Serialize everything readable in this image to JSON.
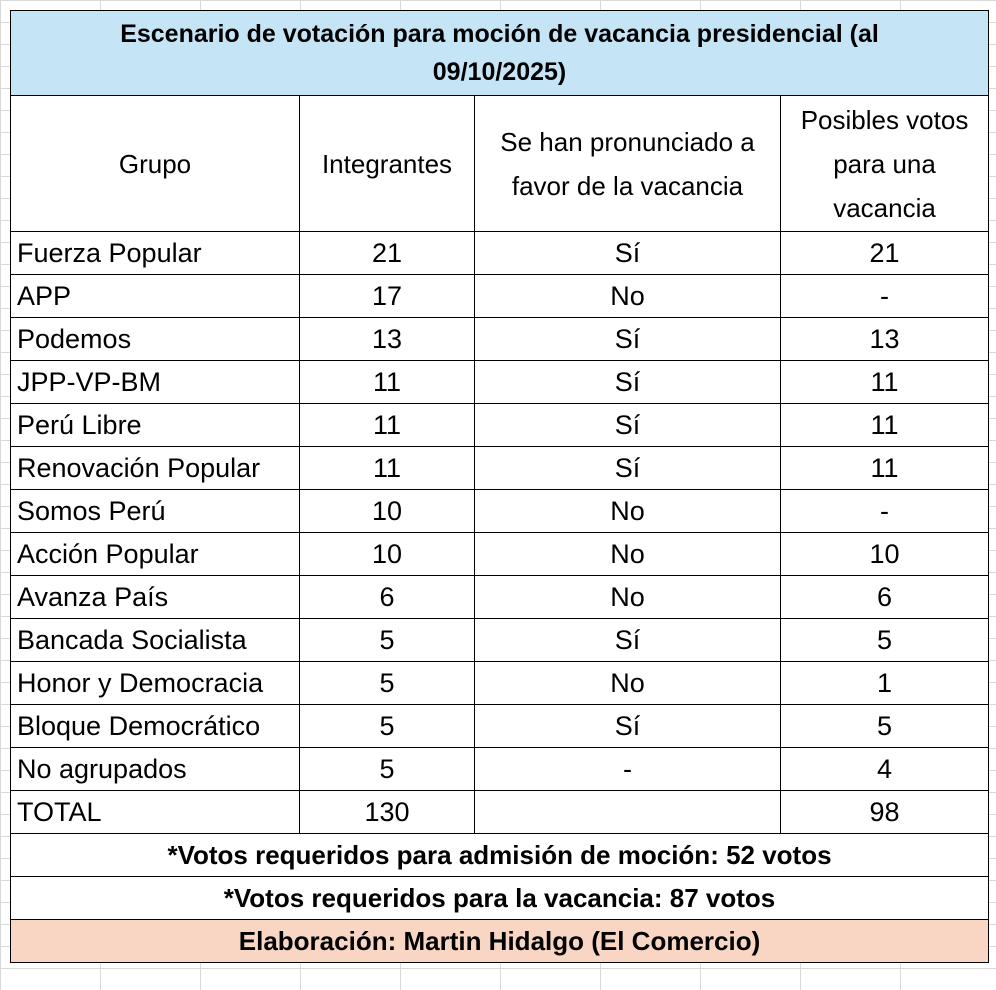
{
  "title": "Escenario de votación para moción de vacancia presidencial (al 09/10/2025)",
  "headers": {
    "group": "Grupo",
    "members": "Integrantes",
    "pronounced": "Se han pronunciado a favor de la vacancia",
    "possible_votes": "Posibles votos para una vacancia"
  },
  "rows": [
    {
      "group": "Fuerza Popular",
      "members": "21",
      "pronounced": "Sí",
      "possible_votes": "21"
    },
    {
      "group": "APP",
      "members": "17",
      "pronounced": "No",
      "possible_votes": "-"
    },
    {
      "group": "Podemos",
      "members": "13",
      "pronounced": "Sí",
      "possible_votes": "13"
    },
    {
      "group": "JPP-VP-BM",
      "members": "11",
      "pronounced": "Sí",
      "possible_votes": "11"
    },
    {
      "group": "Perú Libre",
      "members": "11",
      "pronounced": "Sí",
      "possible_votes": "11"
    },
    {
      "group": "Renovación Popular",
      "members": "11",
      "pronounced": "Sí",
      "possible_votes": "11"
    },
    {
      "group": "Somos Perú",
      "members": "10",
      "pronounced": "No",
      "possible_votes": "-"
    },
    {
      "group": "Acción Popular",
      "members": "10",
      "pronounced": "No",
      "possible_votes": "10"
    },
    {
      "group": "Avanza País",
      "members": "6",
      "pronounced": "No",
      "possible_votes": "6"
    },
    {
      "group": "Bancada Socialista",
      "members": "5",
      "pronounced": "Sí",
      "possible_votes": "5"
    },
    {
      "group": "Honor y Democracia",
      "members": "5",
      "pronounced": "No",
      "possible_votes": "1"
    },
    {
      "group": "Bloque Democrático",
      "members": "5",
      "pronounced": "Sí",
      "possible_votes": "5"
    },
    {
      "group": "No agrupados",
      "members": "5",
      "pronounced": "-",
      "possible_votes": "4"
    }
  ],
  "total": {
    "label": "TOTAL",
    "members": "130",
    "pronounced": "",
    "possible_votes": "98"
  },
  "notes": {
    "admission": "*Votos requeridos para admisión de moción: 52 votos",
    "vacancy": "*Votos requeridos para la vacancia: 87 votos"
  },
  "credit": "Elaboración: Martin Hidalgo (El Comercio)",
  "colors": {
    "title_bg": "#c5e5f7",
    "credit_bg": "#f9d5c4"
  }
}
